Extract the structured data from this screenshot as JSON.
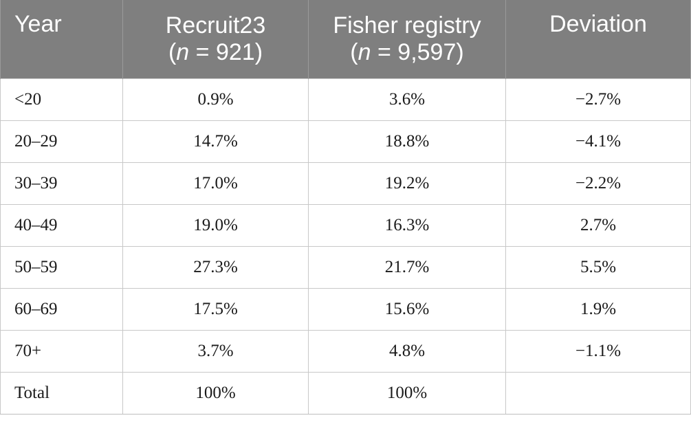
{
  "table": {
    "headers": [
      {
        "line1": "Year",
        "line2": ""
      },
      {
        "line1": "Recruit23",
        "n_label": "n",
        "n_value": " = 921)"
      },
      {
        "line1": "Fisher registry",
        "n_label": "n",
        "n_value": " = 9,597)"
      },
      {
        "line1": "Deviation",
        "line2": ""
      }
    ],
    "rows": [
      {
        "year": "<20",
        "recruit": "0.9%",
        "fisher": "3.6%",
        "deviation": "−2.7%"
      },
      {
        "year": "20–29",
        "recruit": "14.7%",
        "fisher": "18.8%",
        "deviation": "−4.1%"
      },
      {
        "year": "30–39",
        "recruit": "17.0%",
        "fisher": "19.2%",
        "deviation": "−2.2%"
      },
      {
        "year": "40–49",
        "recruit": "19.0%",
        "fisher": "16.3%",
        "deviation": "2.7%"
      },
      {
        "year": "50–59",
        "recruit": "27.3%",
        "fisher": "21.7%",
        "deviation": "5.5%"
      },
      {
        "year": "60–69",
        "recruit": "17.5%",
        "fisher": "15.6%",
        "deviation": "1.9%"
      },
      {
        "year": "70+",
        "recruit": "3.7%",
        "fisher": "4.8%",
        "deviation": "−1.1%"
      },
      {
        "year": "Total",
        "recruit": "100%",
        "fisher": "100%",
        "deviation": ""
      }
    ]
  }
}
